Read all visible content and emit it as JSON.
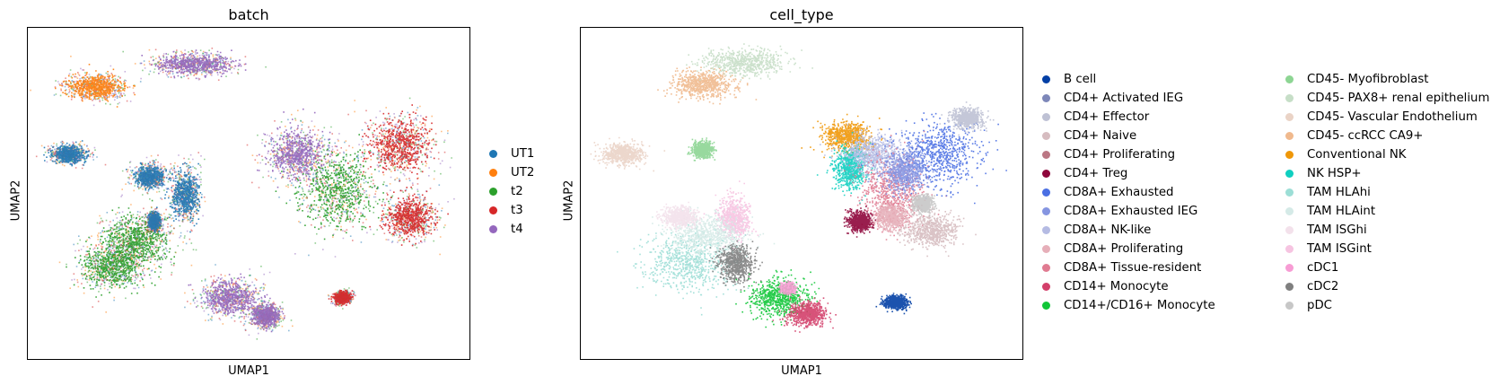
{
  "panels": [
    {
      "title": "batch",
      "xlabel": "UMAP1",
      "ylabel": "UMAP2",
      "legend": [
        {
          "label": "UT1",
          "color": "#1f77b4"
        },
        {
          "label": "UT2",
          "color": "#ff7f0e"
        },
        {
          "label": "t2",
          "color": "#2ca02c"
        },
        {
          "label": "t3",
          "color": "#d62728"
        },
        {
          "label": "t4",
          "color": "#9467bd"
        }
      ]
    },
    {
      "title": "cell_type",
      "xlabel": "UMAP1",
      "ylabel": "UMAP2",
      "legend": [
        {
          "label": "B cell",
          "color": "#023fa5"
        },
        {
          "label": "CD4+ Activated IEG",
          "color": "#7d87b9"
        },
        {
          "label": "CD4+ Effector",
          "color": "#bec1d4"
        },
        {
          "label": "CD4+ Naive",
          "color": "#d6bcc0"
        },
        {
          "label": "CD4+ Proliferating",
          "color": "#bb7784"
        },
        {
          "label": "CD4+ Treg",
          "color": "#8e063b"
        },
        {
          "label": "CD8A+ Exhausted",
          "color": "#4a6fe3"
        },
        {
          "label": "CD8A+ Exhausted IEG",
          "color": "#8595e1"
        },
        {
          "label": "CD8A+ NK-like",
          "color": "#b5bbe3"
        },
        {
          "label": "CD8A+ Proliferating",
          "color": "#e6afb9"
        },
        {
          "label": "CD8A+ Tissue-resident",
          "color": "#e07b91"
        },
        {
          "label": "CD14+ Monocyte",
          "color": "#d33f6a"
        },
        {
          "label": "CD14+/CD16+ Monocyte",
          "color": "#11c638"
        },
        {
          "label": "CD45- Myofibroblast",
          "color": "#8dd593"
        },
        {
          "label": "CD45- PAX8+ renal epithelium",
          "color": "#c6dec7"
        },
        {
          "label": "CD45- Vascular Endothelium",
          "color": "#ead3c6"
        },
        {
          "label": "CD45- ccRCC CA9+",
          "color": "#f0b98d"
        },
        {
          "label": "Conventional NK",
          "color": "#ef9708"
        },
        {
          "label": "NK HSP+",
          "color": "#0fcfc0"
        },
        {
          "label": "TAM HLAhi",
          "color": "#9cded6"
        },
        {
          "label": "TAM HLAint",
          "color": "#d5eae7"
        },
        {
          "label": "TAM ISGhi",
          "color": "#f3e1eb"
        },
        {
          "label": "TAM ISGint",
          "color": "#f6c4e1"
        },
        {
          "label": "cDC1",
          "color": "#f79cd4"
        },
        {
          "label": "cDC2",
          "color": "#7f7f7f"
        },
        {
          "label": "pDC",
          "color": "#c7c7c7"
        }
      ]
    }
  ],
  "chart_data": [
    {
      "type": "scatter",
      "title": "batch",
      "xlabel": "UMAP1",
      "ylabel": "UMAP2",
      "grid": false,
      "legend_position": "right",
      "series": [
        {
          "name": "UT1"
        },
        {
          "name": "UT2"
        },
        {
          "name": "t2"
        },
        {
          "name": "t3"
        },
        {
          "name": "t4"
        }
      ]
    },
    {
      "type": "scatter",
      "title": "cell_type",
      "xlabel": "UMAP1",
      "ylabel": "UMAP2",
      "grid": false,
      "legend_position": "right (2 columns)",
      "series": [
        {
          "name": "B cell"
        },
        {
          "name": "CD4+ Activated IEG"
        },
        {
          "name": "CD4+ Effector"
        },
        {
          "name": "CD4+ Naive"
        },
        {
          "name": "CD4+ Proliferating"
        },
        {
          "name": "CD4+ Treg"
        },
        {
          "name": "CD8A+ Exhausted"
        },
        {
          "name": "CD8A+ Exhausted IEG"
        },
        {
          "name": "CD8A+ NK-like"
        },
        {
          "name": "CD8A+ Proliferating"
        },
        {
          "name": "CD8A+ Tissue-resident"
        },
        {
          "name": "CD14+ Monocyte"
        },
        {
          "name": "CD14+/CD16+ Monocyte"
        },
        {
          "name": "CD45- Myofibroblast"
        },
        {
          "name": "CD45- PAX8+ renal epithelium"
        },
        {
          "name": "CD45- Vascular Endothelium"
        },
        {
          "name": "CD45- ccRCC CA9+"
        },
        {
          "name": "Conventional NK"
        },
        {
          "name": "NK HSP+"
        },
        {
          "name": "TAM HLAhi"
        },
        {
          "name": "TAM HLAint"
        },
        {
          "name": "TAM ISGhi"
        },
        {
          "name": "TAM ISGint"
        },
        {
          "name": "cDC1"
        },
        {
          "name": "cDC2"
        },
        {
          "name": "pDC"
        }
      ]
    }
  ]
}
